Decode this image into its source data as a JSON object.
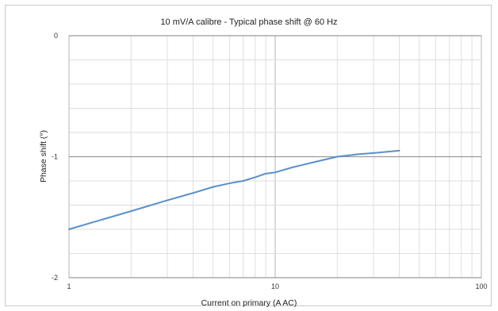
{
  "chart_data": {
    "type": "line",
    "title": "10 mV/A calibre - Typical phase shift @ 60 Hz",
    "xlabel": "Current on primary (A AC)",
    "ylabel": "Phase shift (°)",
    "xscale": "log",
    "xlim": [
      1,
      100
    ],
    "ylim": [
      -2,
      0
    ],
    "x_ticks": [
      1,
      10,
      100
    ],
    "x_tick_labels": [
      "1",
      "10",
      "100"
    ],
    "y_ticks": [
      0,
      -1,
      -2
    ],
    "y_tick_labels": [
      "0",
      "-1",
      "-2"
    ],
    "grid": true,
    "legend": "none",
    "series": [
      {
        "color": "#5b8fc9",
        "x": [
          1,
          2,
          3,
          4,
          5,
          6,
          7,
          8,
          9,
          10,
          12,
          15,
          20,
          25,
          30,
          40
        ],
        "y": [
          -1.6,
          -1.45,
          -1.36,
          -1.3,
          -1.25,
          -1.22,
          -1.2,
          -1.17,
          -1.14,
          -1.13,
          -1.09,
          -1.05,
          -1.0,
          -0.98,
          -0.97,
          -0.95
        ]
      }
    ]
  }
}
